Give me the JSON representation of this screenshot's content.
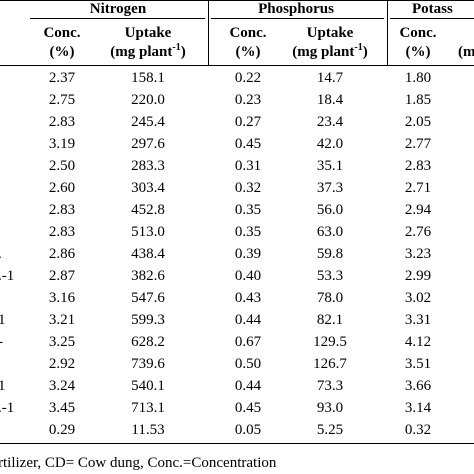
{
  "header": {
    "groups": [
      "Nitrogen",
      "Phosphorus",
      "Potass"
    ],
    "conc_label": "Conc.",
    "conc_unit": "(%)",
    "uptake_label": "Uptake",
    "uptake_unit": [
      "(mg plant",
      "-1",
      ")"
    ],
    "partial_unit": "(m"
  },
  "table": {
    "rows": [
      [
        null,
        "2.37",
        "158.1",
        "0.22",
        "14.7",
        "1.80"
      ],
      [
        null,
        "2.75",
        "220.0",
        "0.23",
        "18.4",
        "1.85"
      ],
      [
        null,
        "2.83",
        "245.4",
        "0.27",
        "23.4",
        "2.05"
      ],
      [
        null,
        "3.19",
        "297.6",
        "0.45",
        "42.0",
        "2.77"
      ],
      [
        null,
        "2.50",
        "283.3",
        "0.31",
        "35.1",
        "2.83"
      ],
      [
        null,
        "2.60",
        "303.4",
        "0.32",
        "37.3",
        "2.71"
      ],
      [
        null,
        "2.83",
        "452.8",
        "0.35",
        "56.0",
        "2.94"
      ],
      [
        null,
        "2.83",
        "513.0",
        "0.35",
        "63.0",
        "2.76"
      ],
      [
        ".",
        "2.86",
        "438.4",
        "0.39",
        "59.8",
        "3.23"
      ],
      [
        ".-1",
        "2.87",
        "382.6",
        "0.40",
        "53.3",
        "2.99"
      ],
      [
        null,
        "3.16",
        "547.6",
        "0.43",
        "78.0",
        "3.02"
      ],
      [
        "1",
        "3.21",
        "599.3",
        "0.44",
        "82.1",
        "3.31"
      ],
      [
        "-",
        "3.25",
        "628.2",
        "0.67",
        "129.5",
        "4.12"
      ],
      [
        null,
        "2.92",
        "739.6",
        "0.50",
        "126.7",
        "3.51"
      ],
      [
        "1",
        "3.24",
        "540.1",
        "0.44",
        "73.3",
        "3.66"
      ],
      [
        ".-1",
        "3.45",
        "713.1",
        "0.45",
        "93.0",
        "3.14"
      ],
      [
        null,
        "0.29",
        "11.53",
        "0.05",
        "5.25",
        "0.32"
      ]
    ]
  },
  "footer": "rtilizer, CD= Cow dung, Conc.=Concentration"
}
